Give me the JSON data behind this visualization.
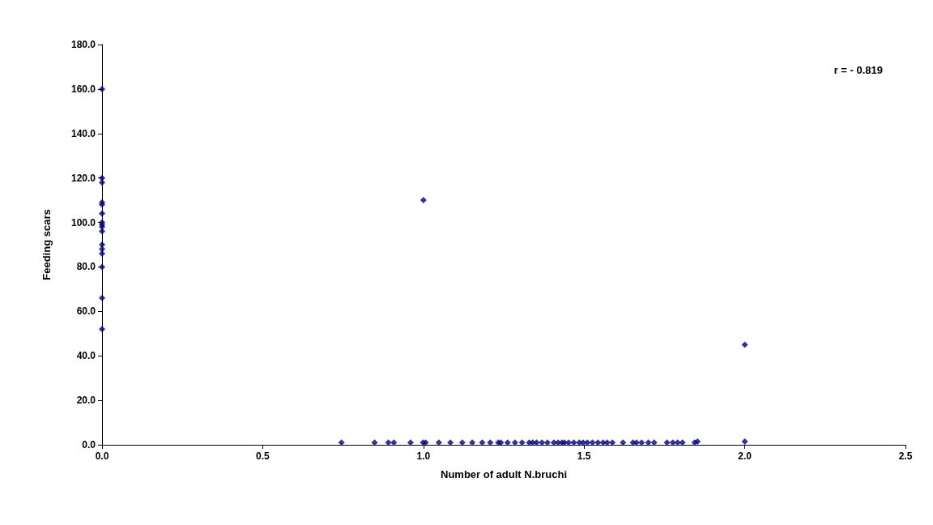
{
  "chart_data": {
    "type": "scatter",
    "xlabel": "Number of adult N.bruchi",
    "ylabel": "Feeding scars",
    "annotations": [
      "r = - 0.819"
    ],
    "x": [
      0,
      0,
      0,
      0,
      0,
      0,
      0,
      0,
      0,
      0,
      0,
      0,
      0,
      0,
      0,
      0,
      1.0,
      2.0,
      2.0,
      0.745,
      0.848,
      0.891,
      0.908,
      0.96,
      0.999,
      1.007,
      1.048,
      1.084,
      1.121,
      1.152,
      1.183,
      1.208,
      1.233,
      1.241,
      1.262,
      1.285,
      1.307,
      1.329,
      1.34,
      1.352,
      1.369,
      1.386,
      1.406,
      1.419,
      1.431,
      1.439,
      1.452,
      1.468,
      1.485,
      1.497,
      1.51,
      1.526,
      1.543,
      1.559,
      1.572,
      1.588,
      1.621,
      1.652,
      1.663,
      1.679,
      1.7,
      1.718,
      1.758,
      1.776,
      1.791,
      1.806,
      1.844,
      1.853
    ],
    "series": [
      {
        "color": "#000080",
        "values": [
          160,
          120,
          118,
          109,
          108,
          104,
          100,
          99,
          98,
          96,
          90,
          88,
          86,
          80,
          66,
          52,
          110,
          45,
          1.5,
          1,
          1,
          1,
          1,
          1,
          1,
          1,
          1,
          1,
          1,
          1,
          1,
          1,
          1,
          1,
          1,
          1,
          1,
          1,
          1,
          1,
          1,
          1,
          1,
          1,
          1,
          1,
          1,
          1,
          1,
          1,
          1,
          1,
          1,
          1,
          1,
          1,
          1,
          1,
          1,
          1,
          1,
          1,
          1,
          1,
          1,
          1,
          1,
          1.5
        ]
      }
    ],
    "xlim": [
      0,
      2.5
    ],
    "xticks": [
      {
        "value": 0,
        "label": "0.0"
      },
      {
        "value": 0.5,
        "label": "0.5"
      },
      {
        "value": 1,
        "label": "1.0"
      },
      {
        "value": 1.5,
        "label": "1.5"
      },
      {
        "value": 2,
        "label": "2.0"
      },
      {
        "value": 2.5,
        "label": "2.5"
      }
    ],
    "ylim": [
      0,
      180
    ],
    "yticks": [
      {
        "value": 0,
        "label": "0.0"
      },
      {
        "value": 20,
        "label": "20.0"
      },
      {
        "value": 40,
        "label": "40.0"
      },
      {
        "value": 60,
        "label": "60.0"
      },
      {
        "value": 80,
        "label": "80.0"
      },
      {
        "value": 100,
        "label": "100.0"
      },
      {
        "value": 120,
        "label": "120.0"
      },
      {
        "value": 140,
        "label": "140.0"
      },
      {
        "value": 160,
        "label": "160.0"
      },
      {
        "value": 180,
        "label": "180.0"
      }
    ],
    "marker": "diamond",
    "grid": false
  }
}
